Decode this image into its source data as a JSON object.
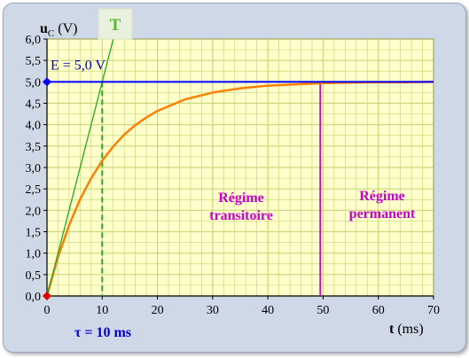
{
  "chart_data": {
    "type": "line",
    "y_axis_symbol": "u",
    "y_axis_subscript": "C",
    "y_axis_unit": "(V)",
    "x_axis_symbol": "t",
    "x_axis_unit": "(ms)",
    "xlim": [
      0,
      70
    ],
    "ylim": [
      0.0,
      6.0
    ],
    "x_ticks": [
      "0",
      "10",
      "20",
      "30",
      "40",
      "50",
      "60",
      "70"
    ],
    "y_ticks": [
      "0,0",
      "0,5",
      "1,0",
      "1,5",
      "2,0",
      "2,5",
      "3,0",
      "3,5",
      "4,0",
      "4,5",
      "5,0",
      "5,5",
      "6,0"
    ],
    "grid": true,
    "series": [
      {
        "role": "charging-curve",
        "color": "#ff7f00",
        "x": [
          0,
          2,
          4,
          6,
          8,
          10,
          12,
          14,
          16,
          18,
          20,
          25,
          30,
          35,
          40,
          45,
          50,
          55,
          60,
          65,
          70
        ],
        "y": [
          0.0,
          0.91,
          1.65,
          2.26,
          2.75,
          3.16,
          3.49,
          3.77,
          3.99,
          4.17,
          4.32,
          4.59,
          4.75,
          4.85,
          4.91,
          4.94,
          4.97,
          4.98,
          4.99,
          4.99,
          5.0
        ]
      },
      {
        "role": "tangent-at-origin",
        "color": "#22aa22",
        "x": [
          0,
          12
        ],
        "y": [
          0.0,
          6.0
        ]
      },
      {
        "role": "asymptote",
        "color": "#0000ff",
        "x": [
          0,
          70
        ],
        "y": [
          5.0,
          5.0
        ]
      }
    ],
    "annotations": {
      "E_label": "E = 5,0 V",
      "E_value": 5.0,
      "T_label": "T",
      "tau_label": "τ = 10 ms",
      "tau_value": 10,
      "regime_transitoire": [
        "Régime",
        "transitoire"
      ],
      "regime_permanent": [
        "Régime",
        "permanent"
      ],
      "regime_boundary_x": 49.5
    },
    "colors": {
      "plot_background": "#ffffcc",
      "grid": "#c9d67a",
      "curve": "#ff7f00",
      "tangent": "#22aa22",
      "asymptote": "#0000ff",
      "tau_line": "#22aa22",
      "boundary": "#cc00cc",
      "text_accent": "#0000cc",
      "marker": "#dd0000"
    }
  }
}
